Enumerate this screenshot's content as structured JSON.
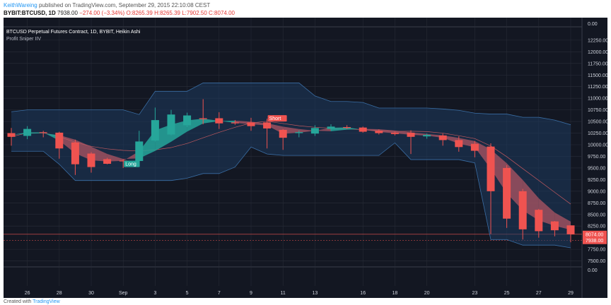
{
  "header": {
    "author": "KeithWareing",
    "published": "published on TradingView.com, September 29, 2015 22:10:08 CEST",
    "symbol": "BYBIT:BTCUSD, 1D",
    "last": "7938.00",
    "change": "−274.00 (−3.34%)",
    "ohlc_o": "O:8265.39",
    "ohlc_h": "H:8265.39",
    "ohlc_l": "L:7902.50",
    "ohlc_c": "C:8074.00"
  },
  "footer": {
    "prefix": "Created with",
    "brand": "TradingView"
  },
  "legend": {
    "title": "BTCUSD Perpetual Futures Contract, 1D, BYBIT, Heikin Ashi",
    "study": "Profit Sniper IIV"
  },
  "colors": {
    "bg": "#131722",
    "grid": "#2a2e39",
    "up": "#26a69a",
    "down": "#ef5350",
    "band": "#1e3a5f",
    "band_line": "#3a6ea5",
    "long_ribbon": "#26a69a",
    "short_ribbon": "#b85965"
  },
  "chart_data": {
    "type": "candlestick",
    "y_ticks": [
      "12250.00",
      "12000.00",
      "11750.00",
      "11500.00",
      "11250.00",
      "11000.00",
      "10750.00",
      "10500.00",
      "10250.00",
      "10000.00",
      "9750.00",
      "9500.00",
      "9250.00",
      "9000.00",
      "8750.00",
      "8500.00",
      "8250.00",
      "7750.00",
      "7500.00"
    ],
    "y_top_label": "0.00",
    "y_bottom_label": "0.00",
    "price_tags": [
      {
        "value": "8074.00",
        "color": "#ef5350"
      },
      {
        "value": "7938.00",
        "color": "#ef5350"
      }
    ],
    "x_labels": [
      "26",
      "28",
      "30",
      "Sep",
      "3",
      "5",
      "7",
      "9",
      "11",
      "13",
      "16",
      "18",
      "20",
      "23",
      "25",
      "27",
      "29"
    ],
    "ylim": [
      7600,
      12400
    ],
    "candles": [
      {
        "o": 10250,
        "c": 10170,
        "h": 10360,
        "l": 9980
      },
      {
        "o": 10190,
        "c": 10340,
        "h": 10400,
        "l": 10120
      },
      {
        "o": 10270,
        "c": 10260,
        "h": 10300,
        "l": 10160
      },
      {
        "o": 10260,
        "c": 9920,
        "h": 10280,
        "l": 9700
      },
      {
        "o": 10050,
        "c": 9580,
        "h": 10110,
        "l": 9350
      },
      {
        "o": 9810,
        "c": 9520,
        "h": 9840,
        "l": 9400
      },
      {
        "o": 9690,
        "c": 9590,
        "h": 9720,
        "l": 9580
      },
      {
        "o": 9660,
        "c": 9650,
        "h": 9690,
        "l": 9500
      },
      {
        "o": 9650,
        "c": 10070,
        "h": 10300,
        "l": 9640
      },
      {
        "o": 10090,
        "c": 10530,
        "h": 10800,
        "l": 10070
      },
      {
        "o": 10220,
        "c": 10650,
        "h": 10750,
        "l": 10200
      },
      {
        "o": 10420,
        "c": 10630,
        "h": 10690,
        "l": 10380
      },
      {
        "o": 10570,
        "c": 10550,
        "h": 10980,
        "l": 10440
      },
      {
        "o": 10570,
        "c": 10460,
        "h": 10700,
        "l": 10340
      },
      {
        "o": 10480,
        "c": 10460,
        "h": 10530,
        "l": 10430
      },
      {
        "o": 10480,
        "c": 10400,
        "h": 10580,
        "l": 10300
      },
      {
        "o": 10480,
        "c": 10350,
        "h": 10560,
        "l": 9920
      },
      {
        "o": 10320,
        "c": 10150,
        "h": 10340,
        "l": 9890
      },
      {
        "o": 10250,
        "c": 10270,
        "h": 10310,
        "l": 10160
      },
      {
        "o": 10240,
        "c": 10360,
        "h": 10420,
        "l": 10190
      },
      {
        "o": 10340,
        "c": 10390,
        "h": 10440,
        "l": 10300
      },
      {
        "o": 10380,
        "c": 10370,
        "h": 10420,
        "l": 10340
      },
      {
        "o": 10370,
        "c": 10280,
        "h": 10390,
        "l": 10260
      },
      {
        "o": 10300,
        "c": 10250,
        "h": 10330,
        "l": 10220
      },
      {
        "o": 10260,
        "c": 10230,
        "h": 10280,
        "l": 10200
      },
      {
        "o": 10260,
        "c": 10170,
        "h": 10310,
        "l": 9800
      },
      {
        "o": 10180,
        "c": 10210,
        "h": 10240,
        "l": 10130
      },
      {
        "o": 10200,
        "c": 10100,
        "h": 10240,
        "l": 9980
      },
      {
        "o": 10100,
        "c": 9950,
        "h": 10180,
        "l": 9850
      },
      {
        "o": 10020,
        "c": 9870,
        "h": 10080,
        "l": 9730
      },
      {
        "o": 9960,
        "c": 9000,
        "h": 10030,
        "l": 8080
      },
      {
        "o": 9500,
        "c": 8410,
        "h": 9560,
        "l": 8210
      },
      {
        "o": 9000,
        "c": 8180,
        "h": 9050,
        "l": 7960
      },
      {
        "o": 8600,
        "c": 8140,
        "h": 8620,
        "l": 8000
      },
      {
        "o": 8350,
        "c": 8160,
        "h": 8360,
        "l": 8030
      },
      {
        "o": 8265,
        "c": 8074,
        "h": 8265,
        "l": 7902
      }
    ],
    "signals": [
      {
        "label": "Long",
        "color": "#26a69a"
      },
      {
        "label": "Short",
        "color": "#ef5350"
      }
    ]
  }
}
